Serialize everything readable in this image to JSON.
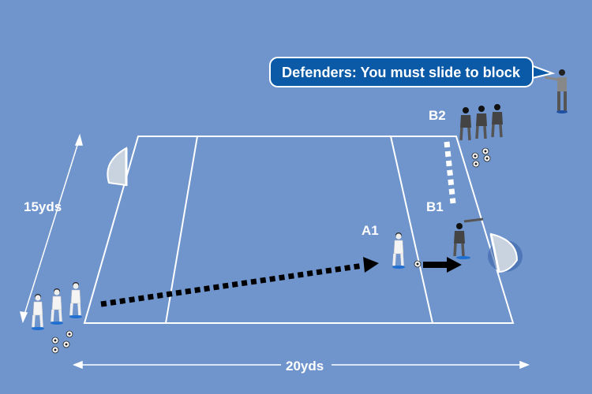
{
  "callout": {
    "text": "Defenders: You must slide to block"
  },
  "labels": {
    "a1": "A1",
    "b1": "B1",
    "b2": "B2",
    "width": "15yds",
    "length": "20yds"
  },
  "colors": {
    "background": "#6f95cc",
    "callout": "#0a5aa8",
    "attack_team": "#ffffff",
    "defend_team": "#4a4a4a",
    "pass_arrow": "#000000",
    "defender_run": "#ffffff"
  }
}
